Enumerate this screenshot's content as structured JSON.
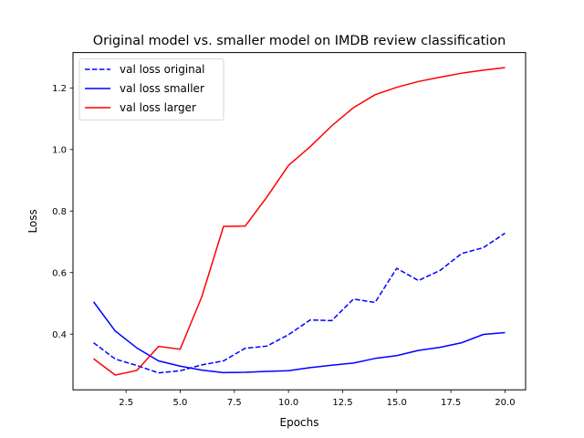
{
  "chart_data": {
    "type": "line",
    "title": "Original model vs. smaller model on IMDB review classification",
    "xlabel": "Epochs",
    "ylabel": "Loss",
    "xlim": [
      0.05,
      20.95
    ],
    "ylim": [
      0.219,
      1.315
    ],
    "xticks": [
      2.5,
      5.0,
      7.5,
      10.0,
      12.5,
      15.0,
      17.5,
      20.0
    ],
    "xtick_labels": [
      "2.5",
      "5.0",
      "7.5",
      "10.0",
      "12.5",
      "15.0",
      "17.5",
      "20.0"
    ],
    "yticks": [
      0.4,
      0.6,
      0.8,
      1.0,
      1.2
    ],
    "ytick_labels": [
      "0.4",
      "0.6",
      "0.8",
      "1.0",
      "1.2"
    ],
    "grid": false,
    "legend": {
      "position": "top-left"
    },
    "x": [
      1,
      2,
      3,
      4,
      5,
      6,
      7,
      8,
      9,
      10,
      11,
      12,
      13,
      14,
      15,
      16,
      17,
      18,
      19,
      20
    ],
    "series": [
      {
        "name": "val loss original",
        "color": "#0000ff",
        "style": "dashed",
        "values": [
          0.372,
          0.319,
          0.298,
          0.274,
          0.281,
          0.3,
          0.313,
          0.354,
          0.361,
          0.398,
          0.446,
          0.444,
          0.514,
          0.503,
          0.614,
          0.574,
          0.607,
          0.662,
          0.681,
          0.728
        ]
      },
      {
        "name": "val loss smaller",
        "color": "#0000ff",
        "style": "solid",
        "values": [
          0.505,
          0.41,
          0.355,
          0.313,
          0.296,
          0.283,
          0.275,
          0.276,
          0.279,
          0.281,
          0.291,
          0.299,
          0.306,
          0.321,
          0.33,
          0.347,
          0.357,
          0.372,
          0.399,
          0.405
        ]
      },
      {
        "name": "val loss larger",
        "color": "#ff0000",
        "style": "solid",
        "values": [
          0.32,
          0.267,
          0.282,
          0.36,
          0.351,
          0.522,
          0.75,
          0.751,
          0.845,
          0.948,
          1.009,
          1.077,
          1.136,
          1.178,
          1.202,
          1.221,
          1.235,
          1.248,
          1.258,
          1.266
        ]
      }
    ]
  }
}
